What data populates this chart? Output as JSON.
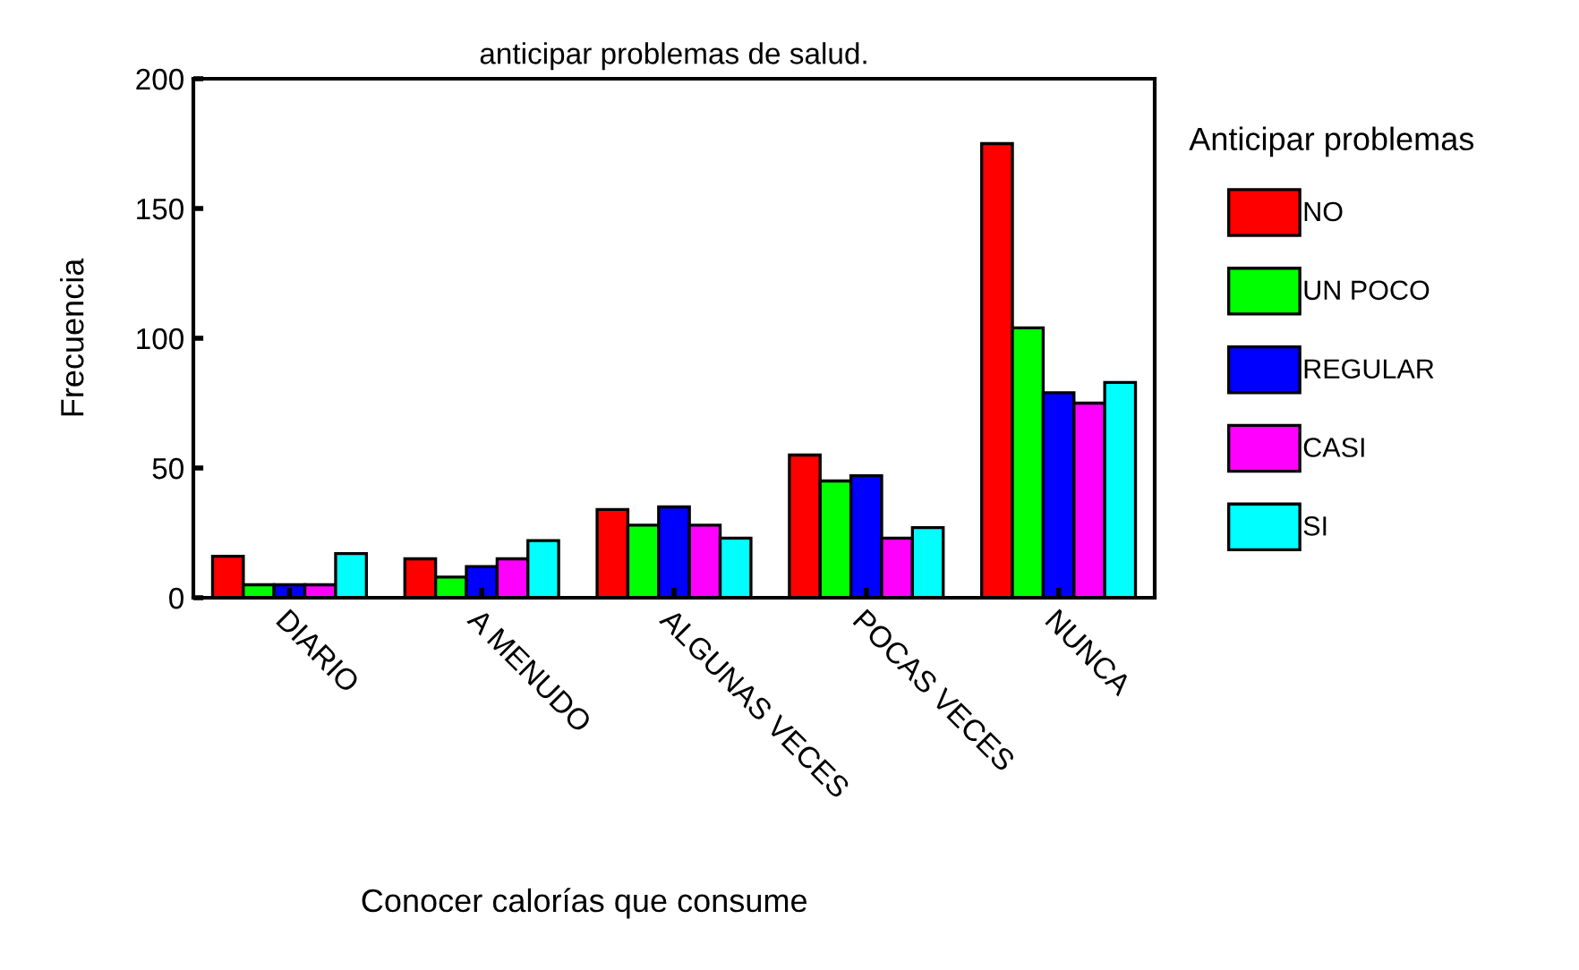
{
  "chart_data": {
    "type": "bar",
    "title": "anticipar problemas de salud.",
    "xlabel": "Conocer calorías que consume",
    "ylabel": "Frecuencia",
    "legend_title": "Anticipar problemas",
    "categories": [
      "DIARIO",
      "A MENUDO",
      "ALGUNAS VECES",
      "POCAS VECES",
      "NUNCA"
    ],
    "series": [
      {
        "name": "NO",
        "color": "#ff0000",
        "values": [
          16,
          15,
          34,
          55,
          175
        ]
      },
      {
        "name": "UN POCO",
        "color": "#00ff00",
        "values": [
          5,
          8,
          28,
          45,
          104
        ]
      },
      {
        "name": "REGULAR",
        "color": "#0000ff",
        "values": [
          5,
          12,
          35,
          47,
          79
        ]
      },
      {
        "name": "CASI",
        "color": "#ff00ff",
        "values": [
          5,
          15,
          28,
          23,
          75
        ]
      },
      {
        "name": "SI",
        "color": "#00ffff",
        "values": [
          17,
          22,
          23,
          27,
          83
        ]
      }
    ],
    "ylim": [
      0,
      200
    ],
    "yticks": [
      0,
      50,
      100,
      150,
      200
    ],
    "grid": false,
    "legend": "right"
  }
}
